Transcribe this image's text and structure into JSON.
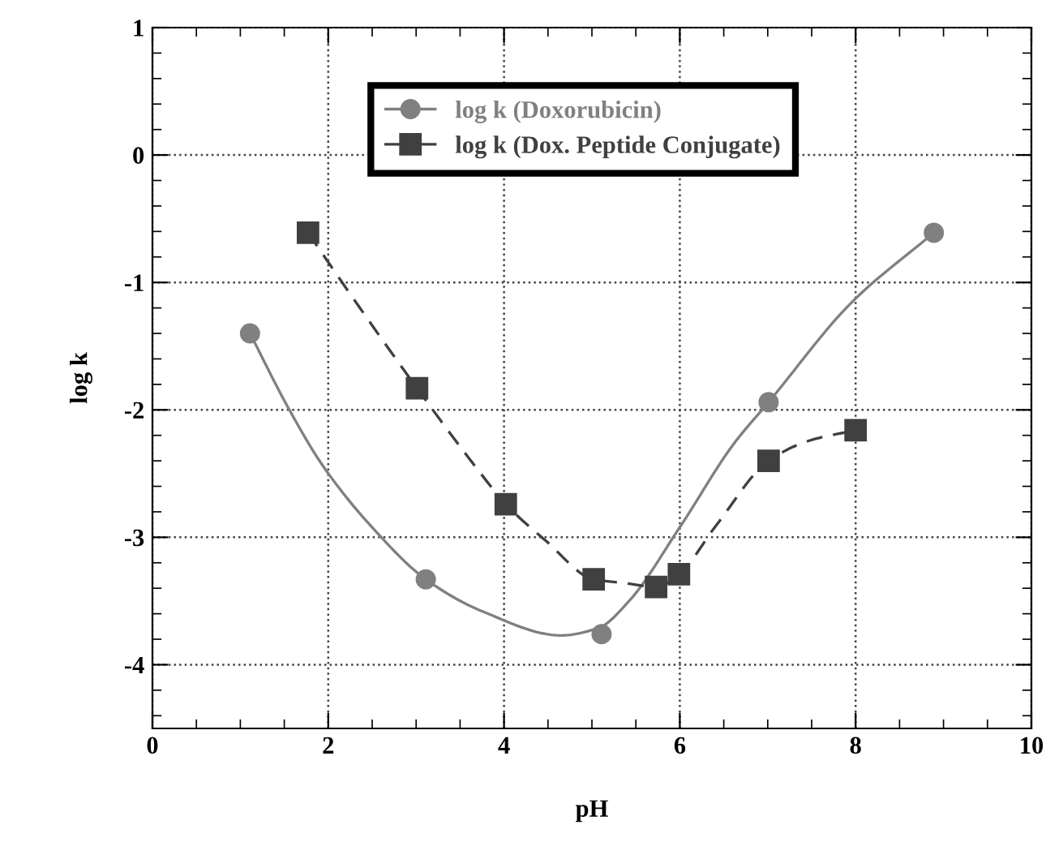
{
  "chart_data": {
    "type": "scatter",
    "xlabel": "pH",
    "ylabel": "log k",
    "xlim": [
      0,
      10
    ],
    "xticks": [
      0,
      2,
      4,
      6,
      8,
      10
    ],
    "ylim": [
      -4.5,
      1
    ],
    "yticks": [
      -4,
      -3,
      -2,
      -1,
      0,
      1
    ],
    "grid": true,
    "legend": "top",
    "series": [
      {
        "name": "log k (Doxorubicin)",
        "color": "#808080",
        "marker": "circle",
        "x": [
          1.11,
          3.11,
          5.11,
          7.01,
          8.89
        ],
        "values": [
          -1.4,
          -3.33,
          -3.76,
          -1.94,
          -0.61
        ]
      },
      {
        "name": "log k (Dox. Peptide Conjugate)",
        "color": "#404040",
        "marker": "square",
        "x": [
          1.77,
          3.01,
          4.02,
          5.02,
          5.73,
          5.99,
          7.01,
          8.0
        ],
        "values": [
          -0.61,
          -1.83,
          -2.74,
          -3.33,
          -3.39,
          -3.29,
          -2.4,
          -2.16
        ]
      },
      {
        "type": "line",
        "color": "#808080",
        "line_style": "solid",
        "marker": "none",
        "x": [
          1.11,
          1.55,
          1.95,
          2.55,
          3.11,
          3.75,
          4.65,
          5.08,
          5.41,
          6.01,
          6.61,
          7.01,
          7.95,
          8.89
        ],
        "values": [
          -1.4,
          -1.99,
          -2.45,
          -2.96,
          -3.33,
          -3.58,
          -3.77,
          -3.71,
          -3.51,
          -2.91,
          -2.27,
          -1.94,
          -1.16,
          -0.61
        ]
      },
      {
        "type": "line",
        "color": "#404040",
        "line_style": "dashed",
        "marker": "none",
        "x": [
          1.77,
          2.35,
          3.01,
          3.68,
          4.02,
          4.48,
          5.02,
          5.38,
          5.73,
          5.99,
          6.41,
          7.01,
          7.48,
          8.0
        ],
        "values": [
          -0.61,
          -1.19,
          -1.83,
          -2.45,
          -2.74,
          -3.03,
          -3.33,
          -3.36,
          -3.39,
          -3.29,
          -2.91,
          -2.4,
          -2.24,
          -2.16
        ]
      }
    ]
  }
}
